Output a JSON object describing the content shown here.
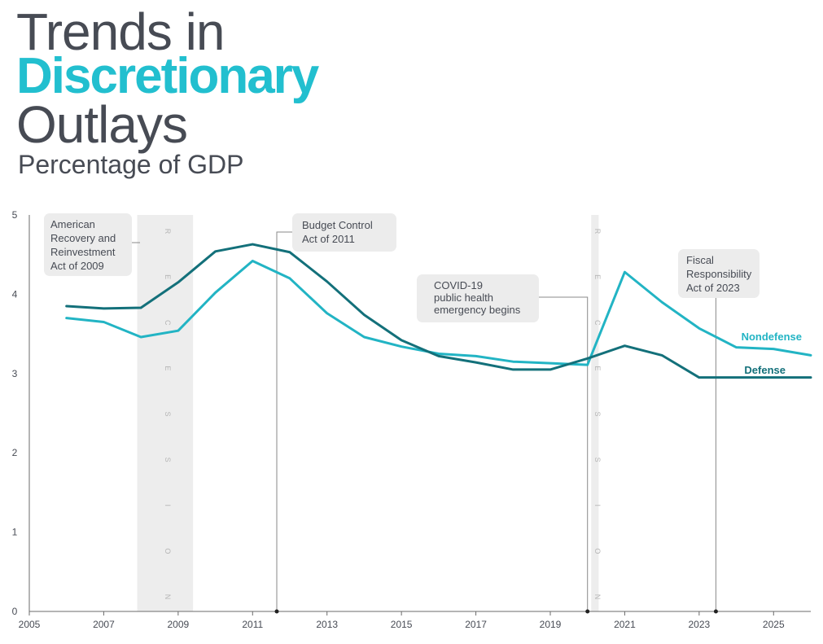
{
  "chart_data": {
    "type": "line",
    "title_line1": "Trends in",
    "title_line2": "Discretionary",
    "title_line3": "Outlays",
    "subtitle": "Percentage of GDP",
    "ylim": [
      0,
      5
    ],
    "xlim": [
      2005,
      2026
    ],
    "yticks": [
      0,
      1,
      2,
      3,
      4,
      5
    ],
    "xticks": [
      2005,
      2007,
      2009,
      2011,
      2013,
      2015,
      2017,
      2019,
      2021,
      2023,
      2025
    ],
    "series": [
      {
        "name": "Nondefense",
        "color": "#22b4c4",
        "x": [
          2006,
          2007,
          2008,
          2009,
          2010,
          2011,
          2012,
          2013,
          2014,
          2015,
          2016,
          2017,
          2018,
          2019,
          2020,
          2021,
          2022,
          2023,
          2024,
          2025,
          2026
        ],
        "values": [
          3.7,
          3.65,
          3.46,
          3.54,
          4.02,
          4.42,
          4.2,
          3.76,
          3.46,
          3.34,
          3.25,
          3.22,
          3.15,
          3.13,
          3.11,
          4.28,
          3.9,
          3.57,
          3.33,
          3.31,
          3.23
        ]
      },
      {
        "name": "Defense",
        "color": "#13707a",
        "x": [
          2006,
          2007,
          2008,
          2009,
          2010,
          2011,
          2012,
          2013,
          2014,
          2015,
          2016,
          2017,
          2018,
          2019,
          2020,
          2021,
          2022,
          2023,
          2024,
          2025,
          2026
        ],
        "values": [
          3.85,
          3.82,
          3.83,
          4.15,
          4.54,
          4.63,
          4.53,
          4.16,
          3.74,
          3.42,
          3.22,
          3.14,
          3.05,
          3.05,
          3.19,
          3.35,
          3.23,
          2.95,
          2.95,
          2.95,
          2.95
        ]
      }
    ],
    "recessions": [
      {
        "start": 2007.9,
        "end": 2009.4,
        "label": "RECESSION"
      },
      {
        "start": 2020.1,
        "end": 2020.3,
        "label": "RECESSION"
      }
    ],
    "annotations": [
      {
        "year": 2011.65,
        "lines": [
          "Budget Control",
          "Act of 2011"
        ]
      },
      {
        "year": 2020.0,
        "lines": [
          "COVID-19",
          "public health",
          "emergency begins"
        ]
      },
      {
        "year": 2023.45,
        "lines": [
          "Fiscal",
          "Responsibility",
          "Act of 2023"
        ]
      }
    ],
    "note_arra": [
      "American",
      "Recovery and",
      "Reinvestment",
      "Act of 2009"
    ]
  }
}
